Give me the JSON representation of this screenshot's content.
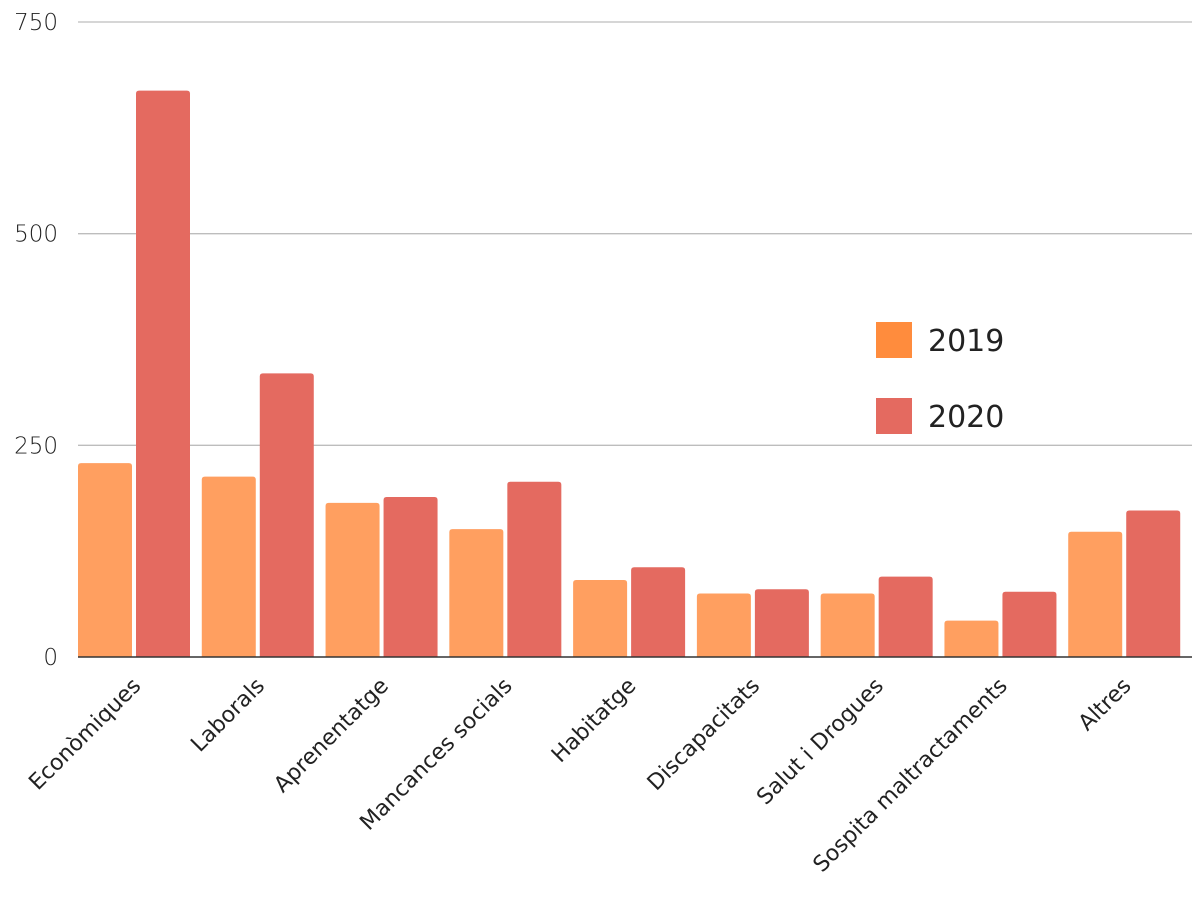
{
  "chart_data": {
    "type": "bar",
    "categories": [
      "Econòmiques",
      "Laborals",
      "Aprenentatge",
      "Mancances socials",
      "Habitatge",
      "Discapacitats",
      "Salut i Drogues",
      "Sospita maltractaments",
      "Altres"
    ],
    "series": [
      {
        "name": "2019",
        "color": "#FF9F60",
        "values": [
          229,
          213,
          182,
          151,
          91,
          75,
          75,
          43,
          148
        ]
      },
      {
        "name": "2020",
        "color": "#E46A60",
        "values": [
          669,
          335,
          189,
          207,
          106,
          80,
          95,
          77,
          173
        ]
      }
    ],
    "legend_swatch_colors": [
      "#FF8C3D",
      "#E46A60"
    ],
    "ylim": [
      0,
      750
    ],
    "yticks": [
      0,
      250,
      500,
      750
    ],
    "grid": true,
    "legend_position": "right",
    "title": "",
    "xlabel": "",
    "ylabel": ""
  }
}
